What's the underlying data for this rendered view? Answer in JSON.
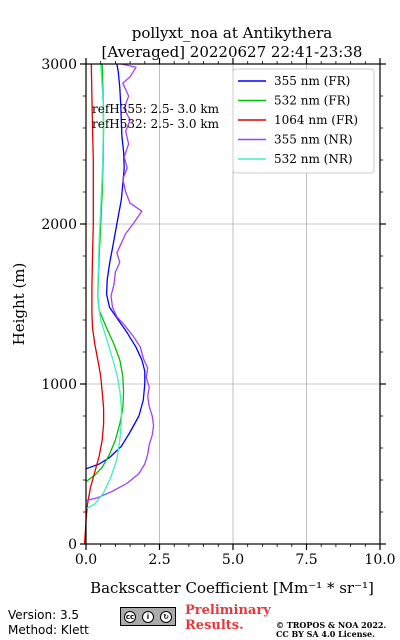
{
  "chart_data": {
    "type": "line",
    "title": "pollyxt_noa at Antikythera",
    "subtitle": "[Averaged] 20220627 22:41-23:38",
    "xlabel": "Backscatter Coefficient [Mm⁻¹ * sr⁻¹]",
    "ylabel": "Height (m)",
    "xlim": [
      0,
      10
    ],
    "ylim": [
      0,
      3000
    ],
    "xticks": [
      "0.0",
      "2.5",
      "5.0",
      "7.5",
      "10.0"
    ],
    "yticks": [
      "0",
      "1000",
      "2000",
      "3000"
    ],
    "grid": true,
    "legend_position": "top-right",
    "annotations": [
      "refH355:  2.5- 3.0 km",
      "refH532:  2.5- 3.0 km"
    ],
    "series": [
      {
        "name": "355 nm (FR)",
        "color": "#0000ff",
        "points": [
          [
            0.0,
            470
          ],
          [
            0.45,
            500
          ],
          [
            0.8,
            540
          ],
          [
            1.2,
            610
          ],
          [
            1.5,
            700
          ],
          [
            1.8,
            800
          ],
          [
            1.95,
            900
          ],
          [
            2.0,
            1000
          ],
          [
            2.0,
            1080
          ],
          [
            1.9,
            1150
          ],
          [
            1.7,
            1230
          ],
          [
            1.4,
            1320
          ],
          [
            1.1,
            1400
          ],
          [
            0.8,
            1480
          ],
          [
            0.7,
            1560
          ],
          [
            0.72,
            1650
          ],
          [
            0.8,
            1750
          ],
          [
            0.9,
            1850
          ],
          [
            1.0,
            1950
          ],
          [
            1.1,
            2050
          ],
          [
            1.2,
            2150
          ],
          [
            1.25,
            2250
          ],
          [
            1.3,
            2350
          ],
          [
            1.28,
            2450
          ],
          [
            1.22,
            2550
          ],
          [
            1.2,
            2650
          ],
          [
            1.18,
            2750
          ],
          [
            1.15,
            2850
          ],
          [
            1.1,
            2950
          ],
          [
            1.05,
            3000
          ]
        ]
      },
      {
        "name": "532 nm (FR)",
        "color": "#00c000",
        "points": [
          [
            0.0,
            390
          ],
          [
            0.3,
            430
          ],
          [
            0.55,
            480
          ],
          [
            0.8,
            560
          ],
          [
            1.0,
            650
          ],
          [
            1.15,
            750
          ],
          [
            1.25,
            850
          ],
          [
            1.28,
            950
          ],
          [
            1.25,
            1050
          ],
          [
            1.15,
            1150
          ],
          [
            0.95,
            1250
          ],
          [
            0.7,
            1350
          ],
          [
            0.45,
            1460
          ],
          [
            0.4,
            1550
          ],
          [
            0.42,
            1650
          ],
          [
            0.45,
            1800
          ],
          [
            0.5,
            2000
          ],
          [
            0.55,
            2200
          ],
          [
            0.58,
            2400
          ],
          [
            0.6,
            2600
          ],
          [
            0.58,
            2800
          ],
          [
            0.55,
            3000
          ]
        ]
      },
      {
        "name": "1064 nm (FR)",
        "color": "#e00000",
        "points": [
          [
            -0.05,
            0
          ],
          [
            -0.02,
            80
          ],
          [
            0.0,
            150
          ],
          [
            0.05,
            250
          ],
          [
            0.15,
            350
          ],
          [
            0.3,
            450
          ],
          [
            0.45,
            550
          ],
          [
            0.55,
            650
          ],
          [
            0.6,
            750
          ],
          [
            0.6,
            850
          ],
          [
            0.55,
            950
          ],
          [
            0.5,
            1050
          ],
          [
            0.4,
            1150
          ],
          [
            0.3,
            1250
          ],
          [
            0.22,
            1350
          ],
          [
            0.2,
            1450
          ],
          [
            0.2,
            1600
          ],
          [
            0.22,
            1800
          ],
          [
            0.25,
            2000
          ],
          [
            0.25,
            2200
          ],
          [
            0.25,
            2400
          ],
          [
            0.22,
            2600
          ],
          [
            0.2,
            2800
          ],
          [
            0.18,
            3000
          ]
        ]
      },
      {
        "name": "355 nm (NR)",
        "color": "#a040ff",
        "points": [
          [
            0.0,
            270
          ],
          [
            0.4,
            290
          ],
          [
            0.9,
            330
          ],
          [
            1.4,
            380
          ],
          [
            1.8,
            440
          ],
          [
            2.0,
            500
          ],
          [
            2.1,
            560
          ],
          [
            2.15,
            620
          ],
          [
            2.25,
            680
          ],
          [
            2.3,
            740
          ],
          [
            2.25,
            800
          ],
          [
            2.15,
            860
          ],
          [
            2.1,
            920
          ],
          [
            2.15,
            980
          ],
          [
            2.05,
            1040
          ],
          [
            2.1,
            1100
          ],
          [
            1.95,
            1160
          ],
          [
            1.85,
            1230
          ],
          [
            1.6,
            1300
          ],
          [
            1.3,
            1370
          ],
          [
            1.05,
            1420
          ],
          [
            0.9,
            1480
          ],
          [
            0.85,
            1550
          ],
          [
            0.95,
            1620
          ],
          [
            1.0,
            1700
          ],
          [
            1.15,
            1760
          ],
          [
            1.05,
            1820
          ],
          [
            1.2,
            1880
          ],
          [
            1.35,
            1940
          ],
          [
            1.6,
            2000
          ],
          [
            1.9,
            2080
          ],
          [
            1.5,
            2130
          ],
          [
            1.35,
            2200
          ],
          [
            1.25,
            2280
          ],
          [
            1.4,
            2350
          ],
          [
            1.3,
            2420
          ],
          [
            1.45,
            2500
          ],
          [
            1.35,
            2580
          ],
          [
            1.5,
            2650
          ],
          [
            1.3,
            2720
          ],
          [
            1.45,
            2800
          ],
          [
            1.25,
            2880
          ],
          [
            1.5,
            2920
          ],
          [
            1.7,
            2980
          ],
          [
            1.2,
            3000
          ]
        ]
      },
      {
        "name": "532 nm (NR)",
        "color": "#40f0c0",
        "points": [
          [
            0.0,
            220
          ],
          [
            0.3,
            250
          ],
          [
            0.6,
            320
          ],
          [
            0.85,
            420
          ],
          [
            1.05,
            530
          ],
          [
            1.15,
            650
          ],
          [
            1.2,
            760
          ],
          [
            1.2,
            860
          ],
          [
            1.15,
            960
          ],
          [
            1.05,
            1060
          ],
          [
            0.9,
            1160
          ],
          [
            0.7,
            1280
          ],
          [
            0.5,
            1400
          ],
          [
            0.42,
            1500
          ],
          [
            0.4,
            1600
          ],
          [
            0.42,
            1700
          ],
          [
            0.45,
            1900
          ],
          [
            0.5,
            2100
          ],
          [
            0.55,
            2300
          ],
          [
            0.58,
            2500
          ],
          [
            0.6,
            2700
          ],
          [
            0.55,
            2850
          ],
          [
            0.5,
            3000
          ]
        ]
      }
    ]
  },
  "footer": {
    "version": "Version: 3.5",
    "method": "Method: Klett",
    "prelim_line1": "Preliminary",
    "prelim_line2": "Results.",
    "copyright_line1": "© TROPOS & NOA 2022.",
    "copyright_line2": "CC BY SA 4.0 License."
  }
}
